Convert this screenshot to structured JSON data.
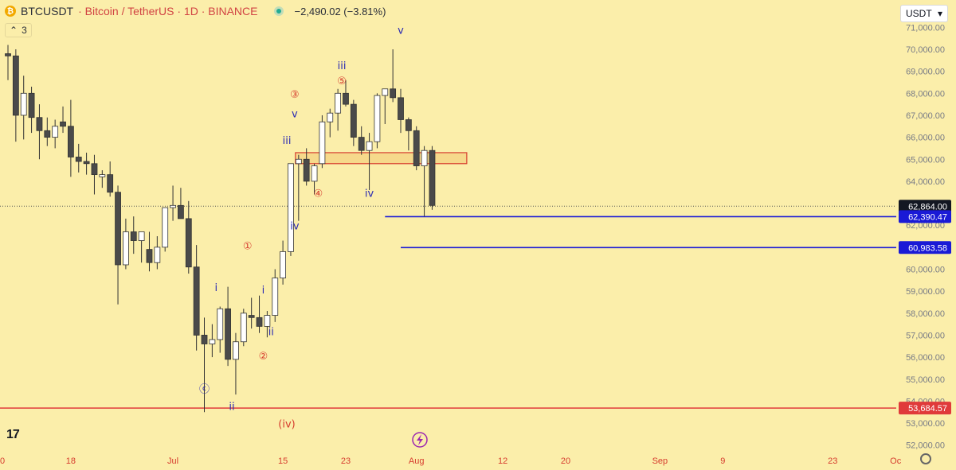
{
  "header": {
    "symbol": "BTCUSDT",
    "title": "· Bitcoin / TetherUS · 1D · BINANCE",
    "change": "−2,490.02 (−3.81%)",
    "indicator_count": "3",
    "currency": "USDT",
    "currency_caret": "▾",
    "coin_glyph": "₿",
    "logo_text": "17",
    "collapse_glyph": "⌃"
  },
  "icons": {
    "coin": "bitcoin-icon",
    "live": "market-open-icon",
    "collapse": "chevron-up-icon",
    "currency": "chevron-down-icon",
    "settings": "gear-icon",
    "logo": "tradingview-logo",
    "flash": "flash-icon"
  },
  "colors": {
    "background": "#fbeeaa",
    "up_body": "#ffffff",
    "down_body": "#4a4a4a",
    "candle_outline": "#333333",
    "wave_red": "#d63c2e",
    "wave_blue": "#2b2bb3",
    "level_blue": "#1a1ad6",
    "level_red": "#e03a3a",
    "zone_fill": "#f3d07e",
    "zone_stroke": "#d63c2e",
    "current_price_bg": "#131722"
  },
  "chart_data": {
    "type": "candlestick",
    "symbol": "BTCUSDT",
    "ylim": [
      52000,
      71500
    ],
    "y_ticks": [
      "52,000.00",
      "53,000.00",
      "54,000.00",
      "55,000.00",
      "56,000.00",
      "57,000.00",
      "58,000.00",
      "59,000.00",
      "60,000.00",
      "61,000.00",
      "62,000.00",
      "63,000.00",
      "64,000.00",
      "65,000.00",
      "66,000.00",
      "67,000.00",
      "68,000.00",
      "69,000.00",
      "70,000.00",
      "71,000.00"
    ],
    "x_ticks": [
      {
        "label": "0",
        "bar": 0
      },
      {
        "label": "18",
        "bar": 8
      },
      {
        "label": "Jul",
        "bar": 21
      },
      {
        "label": "15",
        "bar": 35
      },
      {
        "label": "23",
        "bar": 43
      },
      {
        "label": "Aug",
        "bar": 52
      },
      {
        "label": "12",
        "bar": 63
      },
      {
        "label": "20",
        "bar": 71
      },
      {
        "label": "Sep",
        "bar": 83
      },
      {
        "label": "9",
        "bar": 91
      },
      {
        "label": "23",
        "bar": 105
      },
      {
        "label": "Oc",
        "bar": 113
      }
    ],
    "candles": [
      {
        "o": 69800,
        "h": 70200,
        "l": 68600,
        "c": 69700
      },
      {
        "o": 69700,
        "h": 70000,
        "l": 65800,
        "c": 67000
      },
      {
        "o": 67000,
        "h": 68800,
        "l": 65900,
        "c": 68000
      },
      {
        "o": 68000,
        "h": 68300,
        "l": 66200,
        "c": 66900
      },
      {
        "o": 66900,
        "h": 67500,
        "l": 65000,
        "c": 66300
      },
      {
        "o": 66300,
        "h": 66900,
        "l": 65600,
        "c": 66000
      },
      {
        "o": 66000,
        "h": 66800,
        "l": 65500,
        "c": 66500
      },
      {
        "o": 66700,
        "h": 67400,
        "l": 66200,
        "c": 66500
      },
      {
        "o": 66500,
        "h": 67700,
        "l": 64200,
        "c": 65100
      },
      {
        "o": 65100,
        "h": 65700,
        "l": 64400,
        "c": 64900
      },
      {
        "o": 64900,
        "h": 65300,
        "l": 64300,
        "c": 64800
      },
      {
        "o": 64800,
        "h": 65200,
        "l": 63400,
        "c": 64300
      },
      {
        "o": 64200,
        "h": 64500,
        "l": 63700,
        "c": 64300
      },
      {
        "o": 64300,
        "h": 64900,
        "l": 63300,
        "c": 63500
      },
      {
        "o": 63500,
        "h": 63800,
        "l": 58400,
        "c": 60200
      },
      {
        "o": 60200,
        "h": 62300,
        "l": 60000,
        "c": 61700
      },
      {
        "o": 61700,
        "h": 62400,
        "l": 60700,
        "c": 61300
      },
      {
        "o": 61300,
        "h": 61700,
        "l": 60300,
        "c": 61700
      },
      {
        "o": 60900,
        "h": 61700,
        "l": 59900,
        "c": 60300
      },
      {
        "o": 60300,
        "h": 61500,
        "l": 60000,
        "c": 61000
      },
      {
        "o": 61000,
        "h": 62800,
        "l": 60800,
        "c": 62800
      },
      {
        "o": 62800,
        "h": 63800,
        "l": 62200,
        "c": 62900
      },
      {
        "o": 62900,
        "h": 63700,
        "l": 62300,
        "c": 62300
      },
      {
        "o": 62300,
        "h": 63100,
        "l": 59800,
        "c": 60100
      },
      {
        "o": 60100,
        "h": 61100,
        "l": 56300,
        "c": 57000
      },
      {
        "o": 57000,
        "h": 57800,
        "l": 53500,
        "c": 56600
      },
      {
        "o": 56600,
        "h": 57500,
        "l": 56000,
        "c": 56800
      },
      {
        "o": 56800,
        "h": 58300,
        "l": 56200,
        "c": 58200
      },
      {
        "o": 58200,
        "h": 59200,
        "l": 55600,
        "c": 55900
      },
      {
        "o": 55900,
        "h": 57100,
        "l": 54300,
        "c": 56700
      },
      {
        "o": 56700,
        "h": 58200,
        "l": 56500,
        "c": 58000
      },
      {
        "o": 57900,
        "h": 58700,
        "l": 57300,
        "c": 57800
      },
      {
        "o": 57800,
        "h": 58800,
        "l": 57100,
        "c": 57400
      },
      {
        "o": 57400,
        "h": 58100,
        "l": 56900,
        "c": 57900
      },
      {
        "o": 57900,
        "h": 60000,
        "l": 57600,
        "c": 59600
      },
      {
        "o": 59600,
        "h": 61300,
        "l": 59300,
        "c": 60800
      },
      {
        "o": 60800,
        "h": 64800,
        "l": 60600,
        "c": 64800
      },
      {
        "o": 64800,
        "h": 65200,
        "l": 62200,
        "c": 65000
      },
      {
        "o": 65000,
        "h": 65500,
        "l": 63800,
        "c": 64000
      },
      {
        "o": 64000,
        "h": 64800,
        "l": 63400,
        "c": 64700
      },
      {
        "o": 64800,
        "h": 67000,
        "l": 64600,
        "c": 66700
      },
      {
        "o": 66700,
        "h": 67300,
        "l": 66000,
        "c": 67100
      },
      {
        "o": 67100,
        "h": 68200,
        "l": 66300,
        "c": 68000
      },
      {
        "o": 68000,
        "h": 68600,
        "l": 67400,
        "c": 67500
      },
      {
        "o": 67500,
        "h": 67700,
        "l": 65600,
        "c": 66000
      },
      {
        "o": 66000,
        "h": 66500,
        "l": 65200,
        "c": 65400
      },
      {
        "o": 65400,
        "h": 66200,
        "l": 63600,
        "c": 65800
      },
      {
        "o": 65800,
        "h": 68000,
        "l": 65500,
        "c": 67900
      },
      {
        "o": 67900,
        "h": 68200,
        "l": 66600,
        "c": 68200
      },
      {
        "o": 68200,
        "h": 70000,
        "l": 67600,
        "c": 67800
      },
      {
        "o": 67800,
        "h": 68200,
        "l": 66200,
        "c": 66800
      },
      {
        "o": 66800,
        "h": 66900,
        "l": 65400,
        "c": 66300
      },
      {
        "o": 66300,
        "h": 66500,
        "l": 64500,
        "c": 64700
      },
      {
        "o": 64700,
        "h": 65600,
        "l": 62400,
        "c": 65400
      },
      {
        "o": 65400,
        "h": 65600,
        "l": 62700,
        "c": 62900
      }
    ],
    "zone": {
      "from_bar": 37,
      "to_bar": 58,
      "low": 64800,
      "high": 65300
    },
    "horizontal_levels": [
      {
        "name": "current-price",
        "price": 62864,
        "label": "62,864.00",
        "style": "dotted",
        "from_bar": 0
      },
      {
        "name": "support-1",
        "price": 62390.47,
        "label": "62,390.47",
        "style": "solid",
        "from_bar": 48
      },
      {
        "name": "support-2",
        "price": 60983.58,
        "label": "60,983.58",
        "style": "solid",
        "from_bar": 50
      },
      {
        "name": "wave-c-low",
        "price": 53684.57,
        "label": "53,684.57",
        "style": "solid",
        "from_bar": 0
      }
    ],
    "annotations": [
      {
        "text": "ⓒ",
        "bar": 25,
        "price": 54400,
        "color": "blue"
      },
      {
        "text": "ii",
        "bar": 28.5,
        "price": 53600,
        "color": "blue"
      },
      {
        "text": "i",
        "bar": 26.5,
        "price": 59000,
        "color": "blue"
      },
      {
        "text": "①",
        "bar": 30.5,
        "price": 60900,
        "color": "red"
      },
      {
        "text": "i",
        "bar": 32.5,
        "price": 58900,
        "color": "blue"
      },
      {
        "text": "ii",
        "bar": 33.5,
        "price": 57000,
        "color": "blue"
      },
      {
        "text": "②",
        "bar": 32.5,
        "price": 55900,
        "color": "red"
      },
      {
        "text": "iv",
        "bar": 36.5,
        "price": 61800,
        "color": "blue"
      },
      {
        "text": "iii",
        "bar": 35.5,
        "price": 65700,
        "color": "blue"
      },
      {
        "text": "v",
        "bar": 36.5,
        "price": 66900,
        "color": "blue"
      },
      {
        "text": "③",
        "bar": 36.5,
        "price": 67800,
        "color": "red"
      },
      {
        "text": "④",
        "bar": 39.5,
        "price": 63300,
        "color": "red"
      },
      {
        "text": "iii",
        "bar": 42.5,
        "price": 69100,
        "color": "blue"
      },
      {
        "text": "⑤",
        "bar": 42.5,
        "price": 68400,
        "color": "red"
      },
      {
        "text": "iv",
        "bar": 46,
        "price": 63300,
        "color": "blue"
      },
      {
        "text": "v",
        "bar": 50,
        "price": 70700,
        "color": "blue"
      },
      {
        "text": "(iv)",
        "bar": 35.5,
        "price": 52800,
        "color": "red"
      }
    ]
  }
}
